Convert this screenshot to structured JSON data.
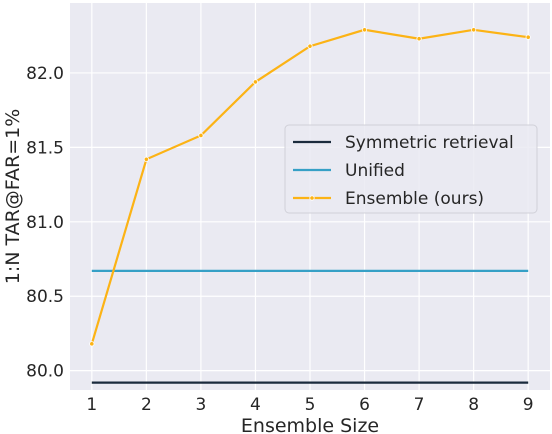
{
  "chart_data": {
    "type": "line",
    "title": "",
    "xlabel": "Ensemble Size",
    "ylabel": "1:N TAR@FAR=1%",
    "x": [
      1,
      2,
      3,
      4,
      5,
      6,
      7,
      8,
      9
    ],
    "xticks": [
      "1",
      "2",
      "3",
      "4",
      "5",
      "6",
      "7",
      "8",
      "9"
    ],
    "yticks": [
      "80.0",
      "80.5",
      "81.0",
      "81.5",
      "82.0"
    ],
    "ylim": [
      79.87,
      82.47
    ],
    "grid": true,
    "background": "#eaeaf2",
    "legend_position": "center-right",
    "series": [
      {
        "name": "Symmetric retrieval",
        "color": "#1b2b3d",
        "marker": "none",
        "values": [
          79.92,
          79.92,
          79.92,
          79.92,
          79.92,
          79.92,
          79.92,
          79.92,
          79.92
        ]
      },
      {
        "name": "Unified",
        "color": "#36a0c6",
        "marker": "none",
        "values": [
          80.67,
          80.67,
          80.67,
          80.67,
          80.67,
          80.67,
          80.67,
          80.67,
          80.67
        ]
      },
      {
        "name": "Ensemble (ours)",
        "color": "#fcb315",
        "marker": "dot",
        "values": [
          80.18,
          81.42,
          81.58,
          81.94,
          82.18,
          82.29,
          82.23,
          82.29,
          82.24
        ]
      }
    ]
  }
}
